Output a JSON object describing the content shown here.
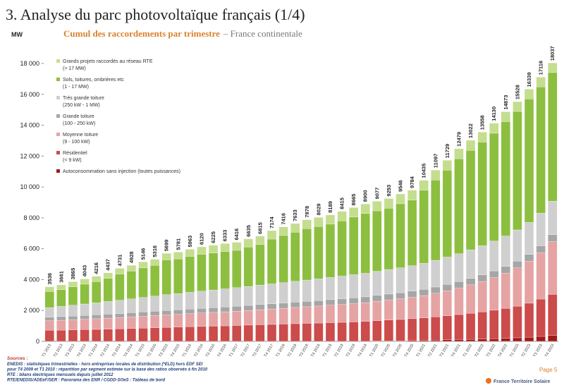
{
  "chart_data": {
    "type": "stacked_bar",
    "title": "3. Analyse du parc photovoltaïque français (1/4)",
    "subtitle": "Cumul des raccordements par trimestre",
    "subtitle_suffix": "– France continentale",
    "y_label": "MW",
    "categories": [
      "T1 2013",
      "T2 2013",
      "T3 2013",
      "T4 2013",
      "T1 2014",
      "T2 2014",
      "T3 2014",
      "T4 2014",
      "T1 2015",
      "T2 2015",
      "T3 2015",
      "T4 2015",
      "T1 2016",
      "T2 2016",
      "T3 2016",
      "T4 2016",
      "T1 2017",
      "T2 2017",
      "T3 2017",
      "T4 2017",
      "T1 2018",
      "T2 2018",
      "T3 2018",
      "T4 2018",
      "T1 2019",
      "T2 2019",
      "T3 2019",
      "T4 2019",
      "T1 2020",
      "T2 2020",
      "T3 2020",
      "T4 2020",
      "T1 2021",
      "T2 2021",
      "T3 2021",
      "T4 2021",
      "T1 2022",
      "T2 2022",
      "T3 2022",
      "T4 2022",
      "T1 2023",
      "T2 2023",
      "T3 2023",
      "T4 2023"
    ],
    "totals": [
      3536,
      3661,
      3865,
      4043,
      4216,
      4437,
      4731,
      4928,
      5146,
      5316,
      5699,
      5781,
      5963,
      6120,
      6225,
      6333,
      6416,
      6635,
      6815,
      7174,
      7416,
      7633,
      7878,
      8029,
      8189,
      8415,
      8665,
      8900,
      9077,
      9253,
      9546,
      9784,
      10435,
      11097,
      11729,
      12479,
      13022,
      13558,
      14130,
      14873,
      15528,
      16339,
      17116,
      18037
    ],
    "series": [
      {
        "name": "Grands projets raccordés au réseau RTE (> 17 MW)",
        "color": "#c5dd8f",
        "values": [
          312,
          320,
          330,
          340,
          350,
          360,
          370,
          380,
          390,
          400,
          420,
          440,
          460,
          480,
          500,
          510,
          520,
          530,
          540,
          550,
          560,
          570,
          580,
          590,
          600,
          610,
          615,
          620,
          625,
          630,
          635,
          640,
          640,
          645,
          645,
          650,
          650,
          650,
          650,
          640,
          635,
          630,
          628,
          626
        ]
      },
      {
        "name": "Sols, toitures, ombrières etc (1 - 17 MW)",
        "color": "#8cbf3f",
        "values": [
          1036,
          1077,
          1195,
          1281,
          1367,
          1494,
          1698,
          1793,
          1911,
          1982,
          2257,
          2244,
          2329,
          2391,
          2400,
          2423,
          2418,
          2546,
          2633,
          2901,
          3051,
          3173,
          3326,
          3388,
          3448,
          3578,
          3732,
          3868,
          3910,
          3969,
          4143,
          4242,
          4738,
          5202,
          5624,
          6148,
          6442,
          6713,
          6985,
          7408,
          7673,
          8004,
          8178,
          8332
        ]
      },
      {
        "name": "Très grande toiture (250 kW - 1 MW)",
        "color": "#cfcfcf",
        "values": [
          620,
          660,
          700,
          740,
          780,
          820,
          860,
          900,
          940,
          980,
          1020,
          1050,
          1080,
          1110,
          1140,
          1170,
          1200,
          1230,
          1260,
          1290,
          1320,
          1350,
          1380,
          1410,
          1440,
          1470,
          1500,
          1530,
          1560,
          1590,
          1620,
          1650,
          1690,
          1730,
          1770,
          1810,
          1850,
          1890,
          1930,
          1970,
          2020,
          2070,
          2120,
          2167
        ]
      },
      {
        "name": "Grande toiture (100 - 250 kW)",
        "color": "#a6a6a6",
        "values": [
          230,
          236,
          242,
          248,
          254,
          260,
          266,
          272,
          278,
          284,
          290,
          295,
          300,
          305,
          310,
          315,
          320,
          325,
          330,
          335,
          340,
          345,
          350,
          355,
          360,
          365,
          370,
          375,
          380,
          385,
          390,
          395,
          400,
          405,
          410,
          415,
          420,
          425,
          430,
          435,
          440,
          445,
          450,
          455
        ]
      },
      {
        "name": "Moyenne toiture (9 - 100 kW)",
        "color": "#e6a3a3",
        "values": [
          624,
          640,
          655,
          672,
          690,
          710,
          730,
          750,
          770,
          790,
          810,
          830,
          850,
          870,
          890,
          910,
          930,
          950,
          975,
          1000,
          1025,
          1050,
          1075,
          1100,
          1130,
          1160,
          1190,
          1220,
          1260,
          1300,
          1340,
          1390,
          1450,
          1530,
          1620,
          1720,
          1840,
          1970,
          2120,
          2290,
          2480,
          2720,
          3000,
          3416
        ]
      },
      {
        "name": "Résidentiel (< 9 kW)",
        "color": "#cc4b4b",
        "values": [
          714,
          728,
          743,
          762,
          775,
          793,
          807,
          833,
          857,
          880,
          902,
          922,
          944,
          964,
          985,
          1005,
          1028,
          1054,
          1077,
          1098,
          1120,
          1145,
          1167,
          1186,
          1211,
          1232,
          1258,
          1287,
          1322,
          1349,
          1378,
          1412,
          1447,
          1500,
          1560,
          1620,
          1690,
          1760,
          1840,
          1930,
          2050,
          2200,
          2420,
          2665
        ]
      },
      {
        "name": "Autoconsommation sans injection (toutes puissances)",
        "color": "#a11a1a",
        "values": [
          null,
          null,
          null,
          null,
          null,
          null,
          null,
          null,
          null,
          null,
          null,
          null,
          null,
          null,
          null,
          null,
          null,
          null,
          null,
          null,
          null,
          null,
          null,
          null,
          null,
          null,
          null,
          null,
          20,
          30,
          40,
          55,
          70,
          85,
          100,
          116,
          130,
          150,
          175,
          200,
          230,
          270,
          320,
          376
        ]
      }
    ],
    "ylim": [
      0,
      18000
    ],
    "yticks": [
      0,
      {
        "value": 2000,
        "label": "2 000"
      },
      {
        "value": 4000,
        "label": "4 000"
      },
      {
        "value": 6000,
        "label": "6 000"
      },
      {
        "value": 8000,
        "label": "8 000"
      },
      {
        "value": 10000,
        "label": "10 000"
      },
      {
        "value": 12000,
        "label": "12 000"
      },
      {
        "value": 14000,
        "label": "14 000"
      },
      {
        "value": 16000,
        "label": "16 000"
      },
      {
        "value": 18000,
        "label": "18 000"
      }
    ],
    "grid": false,
    "legend": "top-left",
    "sources_title": "Sources :",
    "sources": [
      "ENEDIS : statistiques trimestrielles - hors entreprises locales de distribution (*ELD) hors EDF SEI",
      "pour T4 2009 et T1 2010 : répartition par segment estimée sur la base des ratios observés à fin 2010",
      "RTE : bilans électriques mensuels depuis juillet 2012",
      "RTE/ENEDIS/ADEeF/SER : Panorama des ENR / CGDD-SOeS : Tableau de bord"
    ],
    "page": "Page 5",
    "brand": "France Territoire Solaire"
  }
}
